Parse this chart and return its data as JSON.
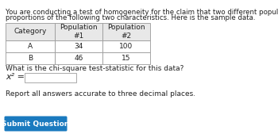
{
  "title_line1": "You are conducting a test of homogeneity for the claim that two different populations have the same",
  "title_line2": "proportions of the following two characteristics. Here is the sample data.",
  "col_headers": [
    "Category",
    "Population\n#1",
    "Population\n#2"
  ],
  "row_A": [
    "A",
    "34",
    "100"
  ],
  "row_B": [
    "B",
    "46",
    "15"
  ],
  "question_text": "What is the chi-square test-statistic for this data?",
  "chi_label": "x² =",
  "note_text": "Report all answers accurate to three decimal places.",
  "button_text": "Submit Question",
  "button_color": "#1a7abf",
  "button_text_color": "#ffffff",
  "bg_color": "#ffffff",
  "table_bg": "#ffffff",
  "header_bg": "#e8e8e8",
  "border_color": "#999999",
  "text_color": "#222222",
  "font_size_title": 6.2,
  "font_size_table": 6.5,
  "font_size_question": 6.5,
  "font_size_note": 6.5,
  "font_size_button": 6.5,
  "font_size_chi": 8.0
}
